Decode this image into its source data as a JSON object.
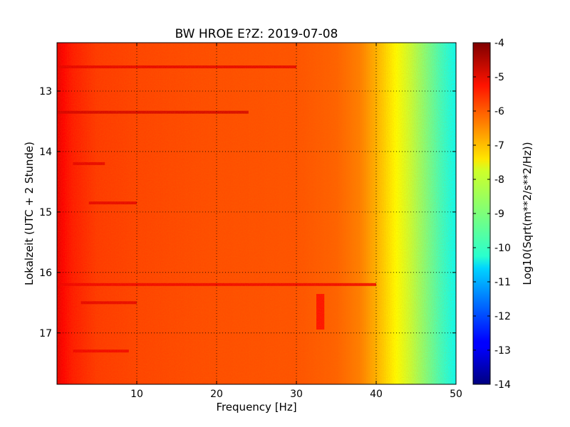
{
  "chart_data": {
    "type": "heatmap",
    "title": "BW HROE E?Z: 2019-07-08",
    "xlabel": "Frequency [Hz]",
    "ylabel": "Lokalzeit (UTC + 2 Stunde)",
    "colorbar_label": "Log10(Sqrt(m**2/s**2/Hz))",
    "colormap": "jet",
    "grid": true,
    "xlim": [
      0,
      50
    ],
    "ylim": [
      12.2,
      17.85
    ],
    "y_inverted": true,
    "clim": [
      -14,
      -4
    ],
    "x_ticks": [
      "10",
      "20",
      "30",
      "40",
      "50"
    ],
    "y_ticks": [
      "13",
      "14",
      "15",
      "16",
      "17"
    ],
    "colorbar_ticks": [
      "-4",
      "-5",
      "-6",
      "-7",
      "-8",
      "-9",
      "-10",
      "-11",
      "-12",
      "-13",
      "-14"
    ],
    "frequency_profile": {
      "frequency_hz": [
        0,
        1,
        2,
        5,
        10,
        20,
        30,
        35,
        38,
        40,
        42,
        44,
        46,
        48,
        50
      ],
      "level": [
        -5.0,
        -5.3,
        -5.5,
        -5.8,
        -5.9,
        -6.0,
        -6.05,
        -6.2,
        -6.5,
        -7.0,
        -7.6,
        -8.2,
        -8.9,
        -9.6,
        -10.2
      ]
    },
    "notable_bands": [
      {
        "time": 12.6,
        "fmin": 0,
        "fmax": 30,
        "level": -5.0
      },
      {
        "time": 13.35,
        "fmin": 0,
        "fmax": 24,
        "level": -4.8
      },
      {
        "time": 14.2,
        "fmin": 2,
        "fmax": 6,
        "level": -5.0
      },
      {
        "time": 14.85,
        "fmin": 4,
        "fmax": 10,
        "level": -5.0
      },
      {
        "time": 16.2,
        "fmin": 0,
        "fmax": 40,
        "level": -5.1
      },
      {
        "time": 16.5,
        "fmin": 3,
        "fmax": 10,
        "level": -5.0
      },
      {
        "time": 17.3,
        "fmin": 2,
        "fmax": 9,
        "level": -5.1
      },
      {
        "time": 16.65,
        "fmin": 32.5,
        "fmax": 33.5,
        "level": -5.3
      }
    ]
  }
}
